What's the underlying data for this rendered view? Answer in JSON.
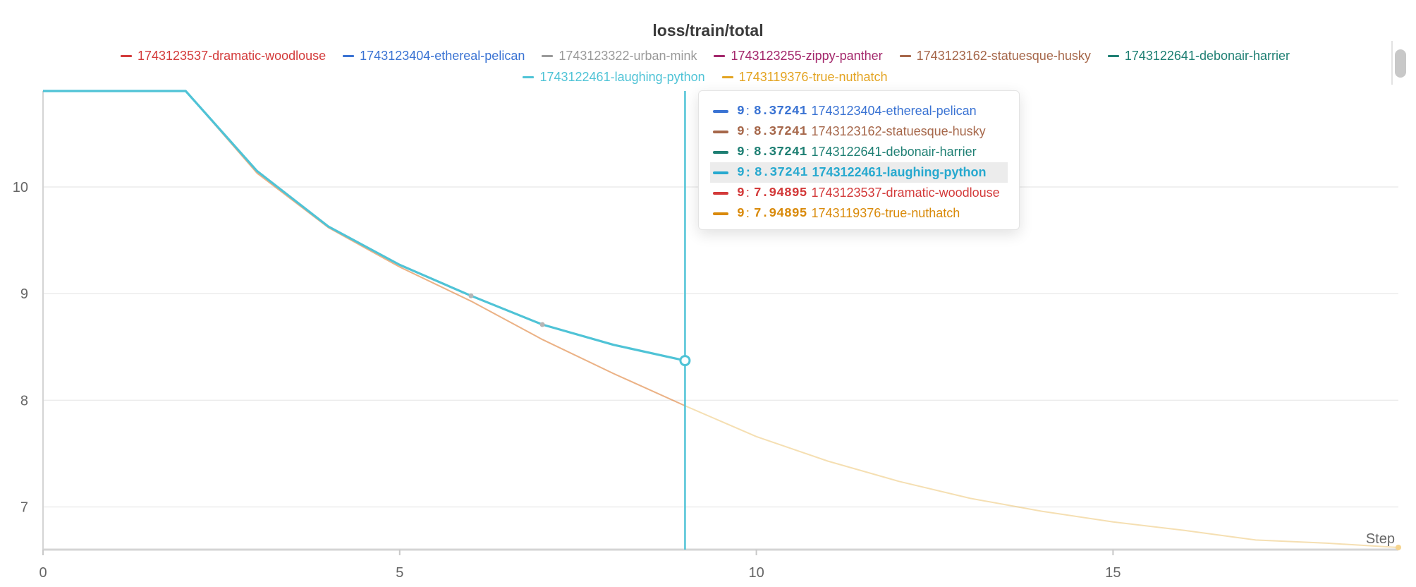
{
  "chart_data": {
    "type": "line",
    "title": "loss/train/total",
    "xlabel": "Step",
    "ylabel": "",
    "xlim": [
      0,
      19
    ],
    "ylim": [
      6.6,
      10.9
    ],
    "xticks": [
      0,
      5,
      10,
      15
    ],
    "yticks": [
      7,
      8,
      9,
      10
    ],
    "grid": true,
    "legend_position": "top",
    "hover_step": 9,
    "series": [
      {
        "name": "1743123537-dramatic-woodlouse",
        "color": "#d33a3a",
        "x": [
          0,
          1,
          2,
          3,
          4,
          5,
          6,
          7,
          8,
          9
        ],
        "y": [
          10.9,
          10.9,
          10.9,
          10.13,
          9.62,
          9.25,
          8.93,
          8.57,
          8.25,
          7.94895
        ]
      },
      {
        "name": "1743123404-ethereal-pelican",
        "color": "#3a73d3",
        "x": [
          0,
          1,
          2,
          3,
          4,
          5,
          6,
          7,
          8,
          9
        ],
        "y": [
          10.9,
          10.9,
          10.9,
          10.15,
          9.63,
          9.27,
          8.98,
          8.71,
          8.52,
          8.37241
        ]
      },
      {
        "name": "1743123322-urban-mink",
        "color": "#9a9a9a",
        "x": [
          0,
          1,
          2,
          3,
          4,
          5,
          6,
          7,
          8,
          9
        ],
        "y": [
          10.9,
          10.9,
          10.9,
          10.15,
          9.63,
          9.27,
          8.98,
          8.71,
          8.52,
          8.37241
        ]
      },
      {
        "name": "1743123255-zippy-panther",
        "color": "#a3276b",
        "x": [
          0,
          1,
          2,
          3,
          4,
          5,
          6,
          7,
          8,
          9
        ],
        "y": [
          10.9,
          10.9,
          10.9,
          10.15,
          9.63,
          9.27,
          8.98,
          8.71,
          8.52,
          8.37241
        ]
      },
      {
        "name": "1743123162-statuesque-husky",
        "color": "#a6674a",
        "x": [
          0,
          1,
          2,
          3,
          4,
          5,
          6,
          7,
          8,
          9
        ],
        "y": [
          10.9,
          10.9,
          10.9,
          10.15,
          9.63,
          9.27,
          8.98,
          8.71,
          8.52,
          8.37241
        ]
      },
      {
        "name": "1743122641-debonair-harrier",
        "color": "#1e7f73",
        "x": [
          0,
          1,
          2,
          3,
          4,
          5,
          6,
          7,
          8,
          9
        ],
        "y": [
          10.9,
          10.9,
          10.9,
          10.15,
          9.63,
          9.27,
          8.98,
          8.71,
          8.52,
          8.37241
        ]
      },
      {
        "name": "1743122461-laughing-python",
        "color": "#4fc3d6",
        "x": [
          0,
          1,
          2,
          3,
          4,
          5,
          6,
          7,
          8,
          9
        ],
        "y": [
          10.9,
          10.9,
          10.9,
          10.15,
          9.63,
          9.27,
          8.98,
          8.71,
          8.52,
          8.37241
        ]
      },
      {
        "name": "1743119376-true-nuthatch",
        "color": "#e3a422",
        "x": [
          0,
          1,
          2,
          3,
          4,
          5,
          6,
          7,
          8,
          9,
          10,
          11,
          12,
          13,
          14,
          15,
          16,
          17,
          18,
          19
        ],
        "y": [
          10.9,
          10.9,
          10.9,
          10.13,
          9.62,
          9.25,
          8.93,
          8.57,
          8.25,
          7.94895,
          7.66,
          7.43,
          7.24,
          7.08,
          6.96,
          6.86,
          6.78,
          6.69,
          6.66,
          6.62
        ]
      }
    ]
  },
  "legend": [
    {
      "label": "1743123537-dramatic-woodlouse",
      "color": "#d33a3a"
    },
    {
      "label": "1743123404-ethereal-pelican",
      "color": "#3a73d3"
    },
    {
      "label": "1743123322-urban-mink",
      "color": "#9a9a9a"
    },
    {
      "label": "1743123255-zippy-panther",
      "color": "#a3276b"
    },
    {
      "label": "1743123162-statuesque-husky",
      "color": "#a6674a"
    },
    {
      "label": "1743122641-debonair-harrier",
      "color": "#1e7f73"
    },
    {
      "label": "1743122461-laughing-python",
      "color": "#4fc3d6"
    },
    {
      "label": "1743119376-true-nuthatch",
      "color": "#e3a422"
    }
  ],
  "tooltip": {
    "rows": [
      {
        "step": "9",
        "value": "8.37241",
        "name": "1743123404-ethereal-pelican",
        "color": "#3a73d3",
        "active": false
      },
      {
        "step": "9",
        "value": "8.37241",
        "name": "1743123162-statuesque-husky",
        "color": "#a6674a",
        "active": false
      },
      {
        "step": "9",
        "value": "8.37241",
        "name": "1743122641-debonair-harrier",
        "color": "#1e7f73",
        "active": false
      },
      {
        "step": "9",
        "value": "8.37241",
        "name": "1743122461-laughing-python",
        "color": "#27a9cf",
        "active": true
      },
      {
        "step": "9",
        "value": "7.94895",
        "name": "1743123537-dramatic-woodlouse",
        "color": "#d33a3a",
        "active": false
      },
      {
        "step": "9",
        "value": "7.94895",
        "name": "1743119376-true-nuthatch",
        "color": "#d98a0a",
        "active": false
      }
    ]
  }
}
